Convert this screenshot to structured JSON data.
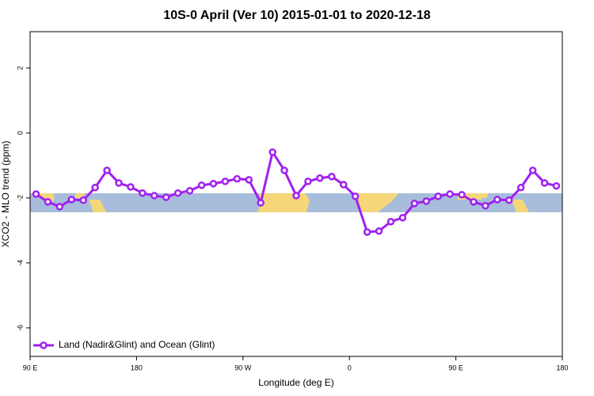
{
  "chart_data": {
    "type": "line",
    "title": "10S-0 April (Ver 10)   2015-01-01 to 2020-12-18",
    "x_label": "Longitude (deg E)",
    "y_label": "XCO2 - MLO trend (ppm)",
    "x": [
      95,
      105,
      115,
      125,
      135,
      145,
      155,
      165,
      175,
      185,
      195,
      205,
      215,
      225,
      235,
      245,
      255,
      265,
      275,
      285,
      295,
      305,
      315,
      325,
      335,
      345,
      355,
      365,
      375,
      385,
      395,
      405,
      415,
      425,
      435,
      445,
      455,
      465,
      475,
      485,
      495,
      505,
      515,
      525,
      535
    ],
    "series": [
      {
        "name": "Land (Nadir&Glint) and Ocean (Glint)",
        "color": "#a020f0",
        "values": [
          -1.88,
          -2.12,
          -2.27,
          -2.05,
          -2.07,
          -1.68,
          -1.15,
          -1.54,
          -1.66,
          -1.85,
          -1.93,
          -1.98,
          -1.85,
          -1.78,
          -1.61,
          -1.56,
          -1.49,
          -1.41,
          -1.44,
          -2.15,
          -0.59,
          -1.15,
          -1.93,
          -1.49,
          -1.39,
          -1.34,
          -1.59,
          -1.95,
          -3.05,
          -3.02,
          -2.73,
          -2.61,
          -2.17,
          -2.1,
          -1.95,
          -1.88,
          -1.9,
          -2.12,
          -2.24,
          -2.05,
          -2.07,
          -1.68,
          -1.15,
          -1.54,
          -1.63
        ]
      }
    ],
    "xlim": [
      90,
      540
    ],
    "xticks": [
      {
        "value": 90,
        "label": "90 E"
      },
      180,
      {
        "value": 270,
        "label": "90 W"
      },
      {
        "value": 360,
        "label": "0"
      },
      {
        "value": 450,
        "label": "90 E"
      },
      {
        "value": 540,
        "label": "180"
      }
    ],
    "ylim": [
      -6.88,
      3.12
    ],
    "yticks": [
      -6,
      -4,
      -2,
      0,
      2
    ],
    "legend": "bottom-left"
  }
}
